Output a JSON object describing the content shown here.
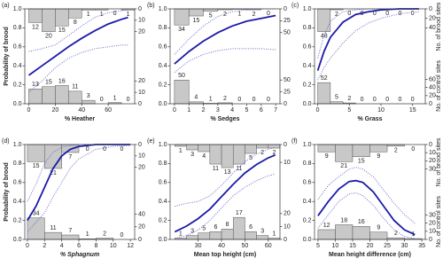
{
  "chart_data": [
    {
      "type": "line",
      "panel": "(a)",
      "x_label": "% Heather",
      "y_label": "Probability of brood",
      "xlim": [
        -3,
        80
      ],
      "xticks": [
        0,
        20,
        40,
        60
      ],
      "ylim": [
        0,
        1
      ],
      "yticks": [
        {
          "value": 0,
          "label": "0.0"
        },
        {
          "value": 0.2,
          "label": "0.2"
        },
        {
          "value": 0.4,
          "label": "0.4"
        },
        {
          "value": 0.6,
          "label": "0.6"
        },
        {
          "value": 0.8,
          "label": "0.8"
        },
        {
          "value": 1,
          "label": "1.0"
        }
      ],
      "x": [
        0,
        10,
        20,
        30,
        40,
        50,
        60,
        70,
        75
      ],
      "series": [
        {
          "color": "#1a1aa8",
          "style": "solid",
          "values": [
            0.3,
            0.4,
            0.5,
            0.6,
            0.69,
            0.77,
            0.84,
            0.89,
            0.91
          ]
        },
        {
          "color": "#6a6ad0",
          "style": "dotted",
          "values": [
            0.12,
            0.24,
            0.38,
            0.48,
            0.54,
            0.58,
            0.6,
            0.62,
            0.62
          ]
        },
        {
          "color": "#6a6ad0",
          "style": "dotted",
          "values": [
            0.55,
            0.58,
            0.62,
            0.72,
            0.82,
            0.91,
            0.96,
            0.98,
            0.99
          ]
        }
      ],
      "brood": {
        "bins": [
          0,
          10,
          20,
          30,
          40,
          50,
          60,
          70,
          80
        ],
        "counts": [
          12,
          20,
          15,
          8,
          1,
          1,
          0,
          1
        ],
        "ylim": [
          0,
          25
        ],
        "yticks": [
          0,
          10,
          20
        ]
      },
      "control": {
        "bins": [
          0,
          10,
          20,
          30,
          40,
          50,
          60,
          70,
          80
        ],
        "counts": [
          13,
          15,
          16,
          11,
          3,
          0,
          1,
          0
        ],
        "ylim": [
          0,
          25
        ],
        "yticks": [
          0,
          10,
          20
        ]
      },
      "color": "#c8c8c8"
    },
    {
      "type": "line",
      "panel": "(b)",
      "x_label": "% Sedges",
      "xlim": [
        -0.3,
        7.3
      ],
      "xticks": [
        0,
        1,
        2,
        3,
        4,
        5,
        6,
        7
      ],
      "ylim": [
        0,
        1
      ],
      "yticks": [
        {
          "value": 0,
          "label": "0.0"
        },
        {
          "value": 0.2,
          "label": "0.2"
        },
        {
          "value": 0.4,
          "label": "0.4"
        },
        {
          "value": 0.6,
          "label": "0.6"
        },
        {
          "value": 0.8,
          "label": "0.8"
        },
        {
          "value": 1,
          "label": "1.0"
        }
      ],
      "x": [
        0,
        1,
        2,
        3,
        4,
        5,
        6,
        7
      ],
      "series": [
        {
          "color": "#1a1aa8",
          "style": "solid",
          "values": [
            0.42,
            0.55,
            0.66,
            0.75,
            0.82,
            0.87,
            0.9,
            0.93
          ]
        },
        {
          "color": "#6a6ad0",
          "style": "dotted",
          "values": [
            0.33,
            0.45,
            0.52,
            0.56,
            0.58,
            0.58,
            0.58,
            0.57
          ]
        },
        {
          "color": "#6a6ad0",
          "style": "dotted",
          "values": [
            0.52,
            0.68,
            0.82,
            0.92,
            0.97,
            0.99,
            1.0,
            1.0
          ]
        }
      ],
      "brood": {
        "bins": [
          0,
          1,
          2,
          3,
          4,
          5,
          6,
          7
        ],
        "counts": [
          34,
          15,
          5,
          2,
          1,
          2,
          0
        ],
        "ylim": [
          0,
          60
        ],
        "yticks": [
          0,
          25,
          50
        ]
      },
      "control": {
        "bins": [
          0,
          1,
          2,
          3,
          4,
          5,
          6,
          7
        ],
        "counts": [
          50,
          4,
          1,
          2,
          0,
          0,
          0
        ],
        "ylim": [
          0,
          60
        ],
        "yticks": [
          0,
          25,
          50
        ]
      },
      "color": "#c8c8c8"
    },
    {
      "type": "line",
      "panel": "(c)",
      "x_label": "% Grass",
      "y2_label": "No. of brood sites",
      "y3_label": "No. of control sites",
      "xlim": [
        -0.5,
        17
      ],
      "xticks": [
        0,
        5,
        10,
        15
      ],
      "ylim": [
        0,
        1
      ],
      "yticks": [
        {
          "value": 0,
          "label": "0.0"
        },
        {
          "value": 0.2,
          "label": "0.2"
        },
        {
          "value": 0.4,
          "label": "0.4"
        },
        {
          "value": 0.6,
          "label": "0.6"
        },
        {
          "value": 0.8,
          "label": "0.8"
        },
        {
          "value": 1,
          "label": "1.0"
        }
      ],
      "x": [
        0,
        1,
        2,
        4,
        6,
        8,
        10,
        13,
        16
      ],
      "series": [
        {
          "color": "#1a1aa8",
          "style": "solid",
          "values": [
            0.35,
            0.55,
            0.7,
            0.86,
            0.94,
            0.97,
            0.99,
            1.0,
            1.0
          ]
        },
        {
          "color": "#6a6ad0",
          "style": "dotted",
          "values": [
            0.25,
            0.38,
            0.48,
            0.64,
            0.77,
            0.85,
            0.9,
            0.95,
            0.97
          ]
        },
        {
          "color": "#6a6ad0",
          "style": "dotted",
          "values": [
            0.48,
            0.72,
            0.87,
            0.97,
            0.99,
            1.0,
            1.0,
            1.0,
            1.0
          ]
        }
      ],
      "brood": {
        "bins": [
          0,
          2,
          4,
          6,
          8,
          10,
          12,
          14,
          16
        ],
        "counts": [
          48,
          2,
          0,
          0,
          0,
          0,
          0,
          0
        ],
        "ylim": [
          0,
          60
        ],
        "yticks": [
          0,
          20,
          40
        ]
      },
      "control": {
        "bins": [
          0,
          2,
          4,
          6,
          8,
          10,
          12,
          14,
          16
        ],
        "counts": [
          52,
          5,
          2,
          0,
          0,
          0,
          0,
          0
        ],
        "ylim": [
          0,
          70
        ],
        "yticks": [
          0,
          20,
          40,
          60
        ]
      },
      "color": "#c8c8c8"
    },
    {
      "type": "line",
      "panel": "(d)",
      "x_label": "% Sphagnum",
      "y_label": "Probability of brood",
      "xlim": [
        -0.3,
        12.5
      ],
      "xticks": [
        0,
        2,
        4,
        6,
        8,
        10,
        12
      ],
      "ylim": [
        0,
        1
      ],
      "yticks": [
        {
          "value": 0,
          "label": "0.0"
        },
        {
          "value": 0.2,
          "label": "0.2"
        },
        {
          "value": 0.4,
          "label": "0.4"
        },
        {
          "value": 0.6,
          "label": "0.6"
        },
        {
          "value": 0.8,
          "label": "0.8"
        },
        {
          "value": 1,
          "label": "1.0"
        }
      ],
      "x": [
        0,
        1,
        2,
        3,
        4,
        5,
        6,
        8,
        10,
        12
      ],
      "series": [
        {
          "color": "#1a1aa8",
          "style": "solid",
          "values": [
            0.2,
            0.35,
            0.55,
            0.75,
            0.88,
            0.95,
            0.98,
            1.0,
            1.0,
            1.0
          ]
        },
        {
          "color": "#6a6ad0",
          "style": "dotted",
          "values": [
            0.08,
            0.18,
            0.28,
            0.45,
            0.6,
            0.75,
            0.85,
            0.95,
            0.98,
            0.99
          ]
        },
        {
          "color": "#6a6ad0",
          "style": "dotted",
          "values": [
            0.4,
            0.58,
            0.8,
            0.92,
            0.97,
            0.99,
            1.0,
            1.0,
            1.0,
            1.0
          ]
        }
      ],
      "brood": {
        "bins": [
          0,
          2,
          4,
          6,
          8,
          10,
          12
        ],
        "counts": [
          15,
          21,
          7,
          0,
          0,
          0
        ],
        "ylim": [
          0,
          25
        ],
        "yticks": [
          0,
          10,
          20
        ]
      },
      "control": {
        "bins": [
          0,
          2,
          4,
          6,
          8,
          10,
          12
        ],
        "counts": [
          34,
          11,
          7,
          1,
          2,
          0
        ],
        "ylim": [
          0,
          45
        ],
        "yticks": [
          0,
          20,
          40
        ]
      },
      "color": "#c8c8c8"
    },
    {
      "type": "line",
      "panel": "(e)",
      "x_label": "Mean top height (cm)",
      "xlim": [
        18,
        65
      ],
      "xticks": [
        30,
        40,
        50,
        60
      ],
      "ylim": [
        0,
        1
      ],
      "yticks": [
        {
          "value": 0,
          "label": "0.0"
        },
        {
          "value": 0.2,
          "label": "0.2"
        },
        {
          "value": 0.4,
          "label": "0.4"
        },
        {
          "value": 0.6,
          "label": "0.6"
        },
        {
          "value": 0.8,
          "label": "0.8"
        },
        {
          "value": 1,
          "label": "1.0"
        }
      ],
      "x": [
        20,
        25,
        30,
        35,
        40,
        45,
        50,
        55,
        60,
        63
      ],
      "series": [
        {
          "color": "#1a1aa8",
          "style": "solid",
          "values": [
            0.08,
            0.14,
            0.22,
            0.32,
            0.45,
            0.58,
            0.7,
            0.79,
            0.86,
            0.89
          ]
        },
        {
          "color": "#6a6ad0",
          "style": "dotted",
          "values": [
            0.01,
            0.04,
            0.1,
            0.2,
            0.33,
            0.46,
            0.55,
            0.62,
            0.67,
            0.69
          ]
        },
        {
          "color": "#6a6ad0",
          "style": "dotted",
          "values": [
            0.35,
            0.38,
            0.4,
            0.46,
            0.57,
            0.7,
            0.82,
            0.9,
            0.95,
            0.97
          ]
        }
      ],
      "brood": {
        "bins": [
          20,
          25,
          30,
          35,
          40,
          45,
          50,
          55,
          60,
          65
        ],
        "counts": [
          1,
          3,
          4,
          11,
          13,
          11,
          5,
          2,
          2
        ],
        "ylim": [
          0,
          16
        ],
        "yticks": [
          0,
          10
        ]
      },
      "control": {
        "bins": [
          20,
          25,
          30,
          35,
          40,
          45,
          50,
          55,
          60,
          65
        ],
        "counts": [
          1,
          3,
          5,
          6,
          8,
          17,
          6,
          3,
          1
        ],
        "ylim": [
          0,
          22
        ],
        "yticks": [
          0,
          10,
          20
        ]
      },
      "color": "#c8c8c8"
    },
    {
      "type": "line",
      "panel": "(f)",
      "x_label": "Mean height difference (cm)",
      "y2_label": "No. of brood sites",
      "y3_label": "No. of control sites",
      "xlim": [
        4,
        36
      ],
      "xticks": [
        5,
        10,
        15,
        20,
        25,
        30,
        35
      ],
      "ylim": [
        0,
        1
      ],
      "yticks": [
        {
          "value": 0,
          "label": "0.0"
        },
        {
          "value": 0.2,
          "label": "0.2"
        },
        {
          "value": 0.4,
          "label": "0.4"
        },
        {
          "value": 0.6,
          "label": "0.6"
        },
        {
          "value": 0.8,
          "label": "0.8"
        },
        {
          "value": 1,
          "label": "1.0"
        }
      ],
      "x": [
        5,
        8,
        11,
        14,
        16,
        18,
        21,
        24,
        27,
        30,
        33
      ],
      "series": [
        {
          "color": "#1a1aa8",
          "style": "solid",
          "values": [
            0.25,
            0.4,
            0.53,
            0.61,
            0.62,
            0.6,
            0.5,
            0.35,
            0.2,
            0.1,
            0.05
          ]
        },
        {
          "color": "#6a6ad0",
          "style": "dotted",
          "values": [
            0.12,
            0.26,
            0.4,
            0.48,
            0.49,
            0.46,
            0.36,
            0.22,
            0.1,
            0.03,
            0.01
          ]
        },
        {
          "color": "#6a6ad0",
          "style": "dotted",
          "values": [
            0.42,
            0.57,
            0.66,
            0.74,
            0.76,
            0.74,
            0.66,
            0.52,
            0.38,
            0.26,
            0.17
          ]
        }
      ],
      "brood": {
        "bins": [
          5,
          10,
          15,
          20,
          25,
          30,
          35
        ],
        "counts": [
          9,
          21,
          15,
          9,
          2,
          0
        ],
        "ylim": [
          0,
          35
        ],
        "yticks": [
          0,
          10,
          20,
          30
        ]
      },
      "control": {
        "bins": [
          5,
          10,
          15,
          20,
          25,
          30,
          35
        ],
        "counts": [
          12,
          18,
          16,
          9,
          2,
          1
        ],
        "ylim": [
          0,
          35
        ],
        "yticks": [
          0,
          10,
          20,
          30
        ]
      },
      "color": "#c8c8c8"
    }
  ]
}
